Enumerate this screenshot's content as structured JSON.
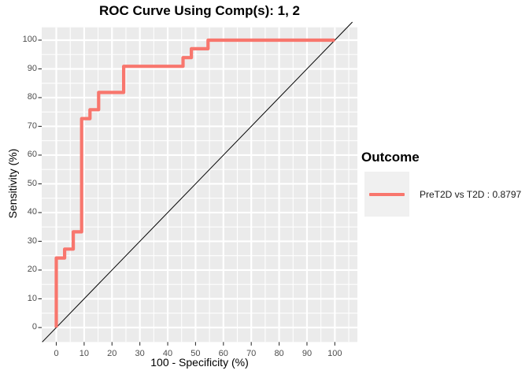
{
  "figure": {
    "title": "ROC Curve Using Comp(s): 1, 2"
  },
  "chart_data": {
    "type": "line",
    "subtype": "roc-step-curve",
    "title": "ROC Curve Using Comp(s): 1, 2",
    "xlabel": "100 - Specificity (%)",
    "ylabel": "Sensitivity (%)",
    "xlim": [
      0,
      100
    ],
    "ylim": [
      0,
      100
    ],
    "x_ticks": [
      0,
      10,
      20,
      30,
      40,
      50,
      60,
      70,
      80,
      90,
      100
    ],
    "y_ticks": [
      0,
      10,
      20,
      30,
      40,
      50,
      60,
      70,
      80,
      90,
      100
    ],
    "grid": "white major and minor gridlines on gray panel",
    "legend_position": "right",
    "series": [
      {
        "name": "PreT2D vs T2D : 0.8797",
        "color": "#F8766D",
        "auc": 0.8797,
        "points": [
          [
            0,
            0
          ],
          [
            0,
            24.2
          ],
          [
            3,
            24.2
          ],
          [
            3,
            27.3
          ],
          [
            6.1,
            27.3
          ],
          [
            6.1,
            33.3
          ],
          [
            9.1,
            33.3
          ],
          [
            9.1,
            72.7
          ],
          [
            12.1,
            72.7
          ],
          [
            12.1,
            75.8
          ],
          [
            15.2,
            75.8
          ],
          [
            15.2,
            81.8
          ],
          [
            24.2,
            81.8
          ],
          [
            24.2,
            90.9
          ],
          [
            45.5,
            90.9
          ],
          [
            45.5,
            93.9
          ],
          [
            48.5,
            93.9
          ],
          [
            48.5,
            97
          ],
          [
            54.5,
            97
          ],
          [
            54.5,
            100
          ],
          [
            100,
            100
          ]
        ]
      }
    ],
    "reference_line": {
      "slope": 1,
      "intercept": 0,
      "color": "#000000"
    }
  },
  "legend": {
    "title": "Outcome",
    "entries": [
      {
        "label": "PreT2D vs T2D : 0.8797",
        "color": "#F8766D"
      }
    ]
  },
  "colors": {
    "curve": "#F8766D",
    "panel_bg": "#EBEBEB",
    "grid": "#FFFFFF",
    "tick_mark": "#333333",
    "tick_label": "#4D4D4D",
    "text": "#000000",
    "legend_key_bg": "#F0F0F0"
  }
}
